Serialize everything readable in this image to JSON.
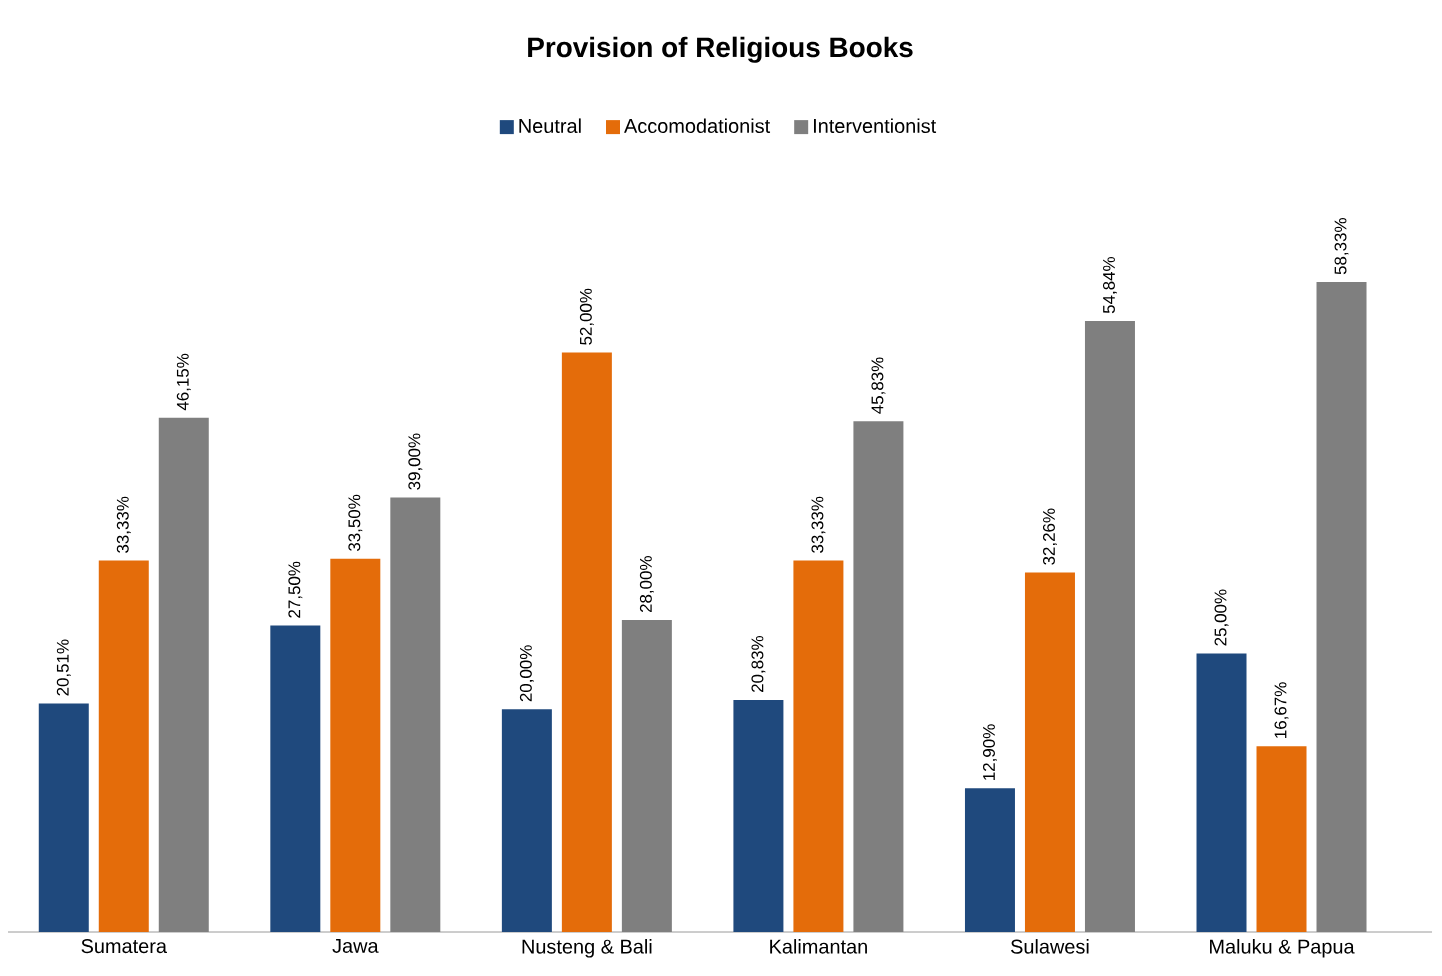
{
  "chart_data": {
    "type": "bar",
    "title": "Provision of Religious Books",
    "categories": [
      "Sumatera",
      "Jawa",
      "Nusteng & Bali",
      "Kalimantan",
      "Sulawesi",
      "Maluku & Papua"
    ],
    "series": [
      {
        "name": "Neutral",
        "color": "#1f497d",
        "values": [
          20.51,
          27.5,
          20.0,
          20.83,
          12.9,
          25.0
        ],
        "value_labels": [
          "20,51%",
          "27,50%",
          "20,00%",
          "20,83%",
          "12,90%",
          "25,00%"
        ]
      },
      {
        "name": "Accomodationist",
        "color": "#e46c0a",
        "values": [
          33.33,
          33.5,
          52.0,
          33.33,
          32.26,
          16.67
        ],
        "value_labels": [
          "33,33%",
          "33,50%",
          "52,00%",
          "33,33%",
          "32,26%",
          "16,67%"
        ]
      },
      {
        "name": "Interventionist",
        "color": "#7f7f7f",
        "values": [
          46.15,
          39.0,
          28.0,
          45.83,
          54.84,
          58.33
        ],
        "value_labels": [
          "46,15%",
          "39,00%",
          "28,00%",
          "45,83%",
          "54,84%",
          "58,33%"
        ]
      }
    ],
    "tick_labels": "x",
    "legend": "top"
  }
}
